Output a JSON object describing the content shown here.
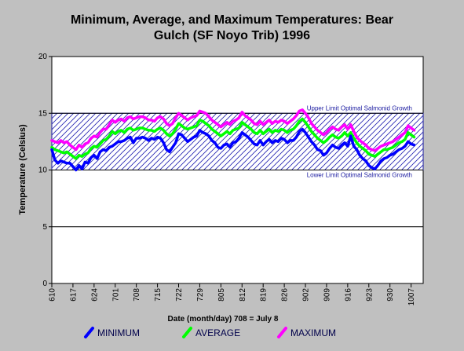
{
  "chart_data": {
    "type": "line",
    "title_line1": "Minimum, Average, and Maximum Temperatures: Bear",
    "title_line2": "Gulch (SF Noyo Trib) 1996",
    "ylabel": "Temperature (Celsius)",
    "xlabel": "Date (month/day) 708 = July 8",
    "ylim": [
      0,
      20
    ],
    "yticks": [
      "0",
      "5",
      "10",
      "15",
      "20"
    ],
    "xlim": [
      0,
      123
    ],
    "xticks": [
      {
        "pos": 0,
        "label": "610"
      },
      {
        "pos": 7,
        "label": "617"
      },
      {
        "pos": 14,
        "label": "624"
      },
      {
        "pos": 21,
        "label": "701"
      },
      {
        "pos": 28,
        "label": "708"
      },
      {
        "pos": 35,
        "label": "715"
      },
      {
        "pos": 42,
        "label": "722"
      },
      {
        "pos": 49,
        "label": "729"
      },
      {
        "pos": 56,
        "label": "805"
      },
      {
        "pos": 63,
        "label": "812"
      },
      {
        "pos": 70,
        "label": "819"
      },
      {
        "pos": 77,
        "label": "826"
      },
      {
        "pos": 84,
        "label": "902"
      },
      {
        "pos": 91,
        "label": "909"
      },
      {
        "pos": 98,
        "label": "916"
      },
      {
        "pos": 105,
        "label": "923"
      },
      {
        "pos": 112,
        "label": "930"
      },
      {
        "pos": 119,
        "label": "1007"
      }
    ],
    "band": {
      "lower": 10,
      "upper": 15,
      "upper_label": "Upper Limit Optimal Salmonid Growth",
      "lower_label": "Lower Limit Optimal Salmonid Growth"
    },
    "series": [
      {
        "name": "MINIMUM",
        "color": "#0000ff",
        "values": [
          11.8,
          10.9,
          10.6,
          10.8,
          10.7,
          10.6,
          10.6,
          10.3,
          10.0,
          10.4,
          10.1,
          10.7,
          10.6,
          11.1,
          11.3,
          11.0,
          11.6,
          11.8,
          11.7,
          12.0,
          12.1,
          12.3,
          12.5,
          12.5,
          12.6,
          12.8,
          12.9,
          12.4,
          12.8,
          12.8,
          12.9,
          12.8,
          12.6,
          12.8,
          12.7,
          12.9,
          12.8,
          12.4,
          11.8,
          11.6,
          12.0,
          12.4,
          13.2,
          13.1,
          12.8,
          12.5,
          12.7,
          12.9,
          13.0,
          13.5,
          13.3,
          13.2,
          13.0,
          12.6,
          12.4,
          12.0,
          11.9,
          12.2,
          12.3,
          12.0,
          12.4,
          12.5,
          12.8,
          13.3,
          13.1,
          12.9,
          12.6,
          12.3,
          12.2,
          12.6,
          12.2,
          12.5,
          12.7,
          12.4,
          12.6,
          12.5,
          12.8,
          12.7,
          12.4,
          12.6,
          12.6,
          12.9,
          13.4,
          13.6,
          13.3,
          12.9,
          12.5,
          12.2,
          11.8,
          11.7,
          11.3,
          11.5,
          11.9,
          12.2,
          12.0,
          11.9,
          12.2,
          12.4,
          12.1,
          13.0,
          12.1,
          11.8,
          11.3,
          11.0,
          10.8,
          10.4,
          10.2,
          10.1,
          10.4,
          10.8,
          11.0,
          11.1,
          11.3,
          11.4,
          11.6,
          11.8,
          11.9,
          12.1,
          12.5,
          12.3,
          12.2
        ],
        "note": "approximate, read from plot"
      },
      {
        "name": "AVERAGE",
        "color": "#00ff00",
        "values": [
          12.0,
          11.8,
          11.7,
          11.6,
          11.5,
          11.6,
          11.4,
          11.2,
          11.0,
          11.3,
          11.2,
          11.4,
          11.5,
          11.9,
          12.1,
          12.0,
          12.3,
          12.6,
          12.7,
          13.0,
          13.4,
          13.2,
          13.4,
          13.5,
          13.3,
          13.6,
          13.7,
          13.5,
          13.6,
          13.7,
          13.7,
          13.6,
          13.5,
          13.5,
          13.4,
          13.6,
          13.7,
          13.5,
          13.2,
          13.0,
          13.2,
          13.6,
          14.1,
          13.9,
          13.7,
          13.6,
          13.7,
          13.8,
          13.9,
          14.4,
          14.3,
          14.1,
          13.9,
          13.6,
          13.4,
          13.2,
          13.0,
          13.2,
          13.4,
          13.2,
          13.5,
          13.6,
          13.7,
          14.2,
          14.0,
          13.8,
          13.6,
          13.3,
          13.2,
          13.5,
          13.2,
          13.4,
          13.6,
          13.3,
          13.5,
          13.4,
          13.6,
          13.5,
          13.3,
          13.5,
          13.6,
          13.9,
          14.3,
          14.5,
          14.2,
          13.8,
          13.4,
          13.1,
          12.8,
          12.6,
          12.4,
          12.6,
          12.9,
          13.1,
          12.9,
          12.8,
          13.0,
          13.3,
          13.0,
          13.3,
          12.8,
          12.4,
          12.1,
          11.9,
          11.7,
          11.4,
          11.3,
          11.2,
          11.4,
          11.6,
          11.8,
          11.8,
          11.9,
          12.0,
          12.2,
          12.4,
          12.5,
          12.7,
          13.3,
          13.1,
          12.9
        ],
        "note": "approximate, read from plot"
      },
      {
        "name": "MAXIMUM",
        "color": "#ff00ff",
        "values": [
          12.6,
          12.5,
          12.4,
          12.6,
          12.4,
          12.5,
          12.2,
          12.0,
          11.8,
          12.2,
          12.0,
          12.3,
          12.4,
          12.8,
          13.0,
          12.9,
          13.3,
          13.6,
          13.6,
          14.0,
          14.4,
          14.2,
          14.4,
          14.5,
          14.3,
          14.6,
          14.7,
          14.5,
          14.6,
          14.7,
          14.7,
          14.6,
          14.4,
          14.4,
          14.3,
          14.6,
          14.7,
          14.5,
          14.1,
          13.9,
          14.1,
          14.6,
          15.0,
          14.8,
          14.6,
          14.4,
          14.6,
          14.7,
          14.8,
          15.2,
          15.1,
          15.0,
          14.7,
          14.4,
          14.2,
          14.0,
          13.8,
          14.0,
          14.2,
          14.0,
          14.3,
          14.4,
          14.6,
          15.1,
          14.8,
          14.6,
          14.4,
          14.1,
          14.0,
          14.3,
          14.0,
          14.2,
          14.4,
          14.1,
          14.3,
          14.2,
          14.4,
          14.3,
          14.1,
          14.3,
          14.5,
          14.8,
          15.2,
          15.3,
          15.0,
          14.6,
          14.1,
          13.8,
          13.5,
          13.3,
          13.1,
          13.3,
          13.6,
          13.8,
          13.6,
          13.5,
          13.8,
          14.0,
          13.6,
          14.0,
          13.4,
          12.9,
          12.6,
          12.4,
          12.2,
          11.9,
          11.8,
          11.7,
          11.9,
          12.1,
          12.2,
          12.3,
          12.4,
          12.5,
          12.7,
          12.9,
          13.1,
          13.3,
          13.9,
          13.7,
          13.5
        ],
        "note": "approximate, read from plot"
      }
    ],
    "grid": "horizontal",
    "legend": "bottom"
  }
}
